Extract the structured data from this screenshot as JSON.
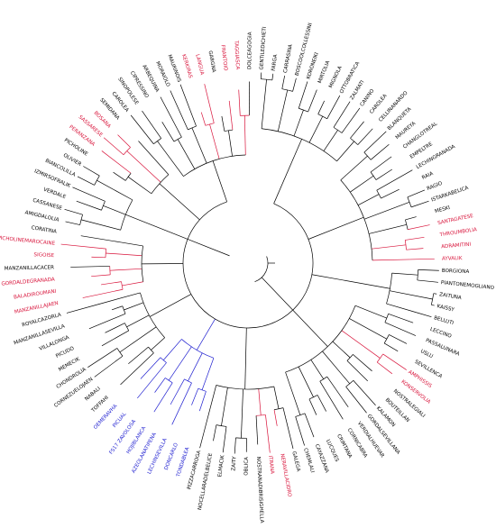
{
  "colors": {
    "black": "#000000",
    "red": "#d8133a",
    "blue": "#1f1fd0"
  },
  "leaves": [
    {
      "label": "GENTILEDICHIETI",
      "color": "black"
    },
    {
      "label": "FARGA",
      "color": "black"
    },
    {
      "label": "CARRASINA",
      "color": "black"
    },
    {
      "label": "BOSCOOLCOLLESSINI",
      "color": "black"
    },
    {
      "label": "KORONEIKI",
      "color": "black"
    },
    {
      "label": "MIRTOLIA",
      "color": "black"
    },
    {
      "label": "MIGNOLA",
      "color": "black"
    },
    {
      "label": "OTTOBRATICA",
      "color": "black"
    },
    {
      "label": "ZALMATI",
      "color": "black"
    },
    {
      "label": "CANINO",
      "color": "black"
    },
    {
      "label": "CAROLEA",
      "color": "black"
    },
    {
      "label": "CELLINANARDO",
      "color": "black"
    },
    {
      "label": "BLANQUETA",
      "color": "black"
    },
    {
      "label": "MAUREYA",
      "color": "black"
    },
    {
      "label": "CHANGLOTREAL",
      "color": "black"
    },
    {
      "label": "EMPELTRE",
      "color": "black"
    },
    {
      "label": "LECHINGRANADA",
      "color": "black"
    },
    {
      "label": "RAIA",
      "color": "black"
    },
    {
      "label": "RAGIO",
      "color": "black"
    },
    {
      "label": "ISTARKABELICA",
      "color": "black"
    },
    {
      "label": "MESKI",
      "color": "black"
    },
    {
      "label": "SANTAGATESE",
      "color": "red"
    },
    {
      "label": "THROUMBOLIA",
      "color": "red"
    },
    {
      "label": "ADRAMITINI",
      "color": "red"
    },
    {
      "label": "AYVALIK",
      "color": "red"
    },
    {
      "label": "BORGIONA",
      "color": "black"
    },
    {
      "label": "PIANTONEMOGLIANO",
      "color": "black"
    },
    {
      "label": "ZAITUNA",
      "color": "black"
    },
    {
      "label": "KAISSY",
      "color": "black"
    },
    {
      "label": "BELLUTI",
      "color": "black"
    },
    {
      "label": "LECCINO",
      "color": "black"
    },
    {
      "label": "PASSALUNARA",
      "color": "black"
    },
    {
      "label": "USLU",
      "color": "black"
    },
    {
      "label": "SEVILLENCA",
      "color": "black"
    },
    {
      "label": "AMPHISSIS",
      "color": "red"
    },
    {
      "label": "KONSERVOLIA",
      "color": "red"
    },
    {
      "label": "NOSTRALEGIALI",
      "color": "black"
    },
    {
      "label": "BOUTEILLAN",
      "color": "black"
    },
    {
      "label": "KALAMON",
      "color": "black"
    },
    {
      "label": "GORDALSEVILLANA",
      "color": "black"
    },
    {
      "label": "VERDIALHUEVAR",
      "color": "black"
    },
    {
      "label": "CORNICABRA",
      "color": "black"
    },
    {
      "label": "CRIMTANA",
      "color": "black"
    },
    {
      "label": "LUCQUES",
      "color": "black"
    },
    {
      "label": "CAYAZZANA",
      "color": "black"
    },
    {
      "label": "CHEMLALI",
      "color": "black"
    },
    {
      "label": "GALEGA",
      "color": "black"
    },
    {
      "label": "NERAVILLACIDRO",
      "color": "red"
    },
    {
      "label": "ITRANA",
      "color": "red"
    },
    {
      "label": "NOSTRANADIBRISIGHELLA",
      "color": "black"
    },
    {
      "label": "OBLICA",
      "color": "black"
    },
    {
      "label": "ZAITY",
      "color": "black"
    },
    {
      "label": "ELMACIK",
      "color": "black"
    },
    {
      "label": "NOCELLARADELBELICE",
      "color": "black"
    },
    {
      "label": "PIZZACARROGA",
      "color": "black"
    },
    {
      "label": "TONDABLEA",
      "color": "blue"
    },
    {
      "label": "DONCARLO",
      "color": "blue"
    },
    {
      "label": "LECHINSEVILLA",
      "color": "blue"
    },
    {
      "label": "AZEOLANATIPENA",
      "color": "blue"
    },
    {
      "label": "HOJIBLANCA",
      "color": "blue"
    },
    {
      "label": "FS17 ZAVOLOSA",
      "color": "blue"
    },
    {
      "label": "PICUAL",
      "color": "blue"
    },
    {
      "label": "OEMERAVHA",
      "color": "blue"
    },
    {
      "label": "TOFFAHI",
      "color": "black"
    },
    {
      "label": "NABALI",
      "color": "black"
    },
    {
      "label": "CORNEZUELOJAEN",
      "color": "black"
    },
    {
      "label": "CHONDROLIA",
      "color": "black"
    },
    {
      "label": "MEMECIK",
      "color": "black"
    },
    {
      "label": "PICUDO",
      "color": "black"
    },
    {
      "label": "VILLALONGA",
      "color": "black"
    },
    {
      "label": "MANZANILLASEVILLA",
      "color": "black"
    },
    {
      "label": "ROYALCAZORLA",
      "color": "black"
    },
    {
      "label": "MANZANILLAJAEN",
      "color": "red"
    },
    {
      "label": "BALADIROUMANI",
      "color": "red"
    },
    {
      "label": "GORDALDEGRANADA",
      "color": "red"
    },
    {
      "label": "MANZANILLACACER",
      "color": "black"
    },
    {
      "label": "SIGOISE",
      "color": "red"
    },
    {
      "label": "PICHOLINEMAROCAINE",
      "color": "red"
    },
    {
      "label": "CORATINA",
      "color": "black"
    },
    {
      "label": "AMIGDALOLIA",
      "color": "black"
    },
    {
      "label": "CASSANESE",
      "color": "black"
    },
    {
      "label": "VERDALE",
      "color": "black"
    },
    {
      "label": "IZMIRSOFRALIK",
      "color": "black"
    },
    {
      "label": "BIANCOLILLA",
      "color": "black"
    },
    {
      "label": "OLIVIER",
      "color": "black"
    },
    {
      "label": "PICHOLINE",
      "color": "black"
    },
    {
      "label": "PERANZANA",
      "color": "red"
    },
    {
      "label": "SASSARESE",
      "color": "red"
    },
    {
      "label": "BOSANA",
      "color": "red"
    },
    {
      "label": "SEMIDANA",
      "color": "black"
    },
    {
      "label": "CAROLEA",
      "color": "black"
    },
    {
      "label": "SINOPOLESE",
      "color": "black"
    },
    {
      "label": "CIPRESSINO",
      "color": "black"
    },
    {
      "label": "ARBEQUINA",
      "color": "black"
    },
    {
      "label": "MORAIOLO",
      "color": "black"
    },
    {
      "label": "MAURINOIS",
      "color": "black"
    },
    {
      "label": "KERKIRAS",
      "color": "red"
    },
    {
      "label": "LANGUA",
      "color": "red"
    },
    {
      "label": "GARGNA",
      "color": "black"
    },
    {
      "label": "FRANTOIO",
      "color": "red"
    },
    {
      "label": "TAGGIASCA",
      "color": "red"
    },
    {
      "label": "DOLCEAGOGIA",
      "color": "black"
    }
  ]
}
